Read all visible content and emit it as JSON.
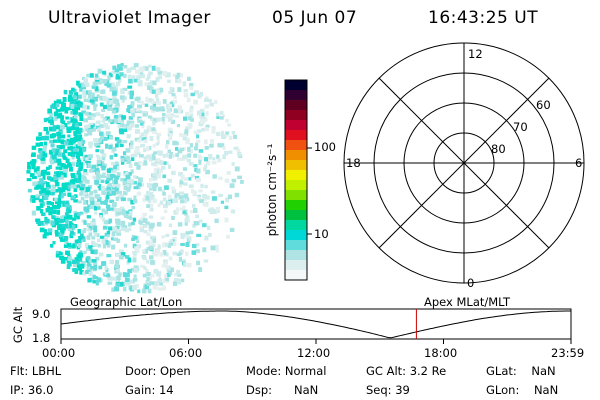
{
  "header": {
    "title": "Ultraviolet Imager",
    "date": "05 Jun 07",
    "time": "16:43:25 UT"
  },
  "colorbar": {
    "unit_label": "photon cm⁻²s⁻¹",
    "ticks": [
      "100",
      "10"
    ]
  },
  "polar_plot": {
    "hour_labels": {
      "top": "12",
      "left": "18",
      "right": "6",
      "bottom": "0"
    },
    "lat_labels": [
      "60",
      "70",
      "80"
    ]
  },
  "altitude_plot": {
    "left_label": "Geographic Lat/Lon",
    "right_label": "Apex MLat/MLT",
    "axis_label": "GC Alt",
    "y_ticks": [
      "9.0",
      "1.8"
    ],
    "x_ticks": [
      "00:00",
      "06:00",
      "12:00",
      "18:00",
      "23:59"
    ],
    "marker_time": "16:43:25"
  },
  "info_rows": [
    [
      {
        "label": "Flt:",
        "value": "LBHL"
      },
      {
        "label": "Door:",
        "value": "Open"
      },
      {
        "label": "Mode:",
        "value": "Normal"
      },
      {
        "label": "GC Alt:",
        "value": "3.2 Re"
      },
      {
        "label": "GLat:",
        "value": "NaN"
      }
    ],
    [
      {
        "label": "IP:",
        "value": "36.0"
      },
      {
        "label": "Gain:",
        "value": "14"
      },
      {
        "label": "Dsp:",
        "value": "NaN"
      },
      {
        "label": "Seq:",
        "value": "39"
      },
      {
        "label": "GLon:",
        "value": "NaN"
      }
    ]
  ],
  "colors": {
    "scale": [
      "#000030",
      "#300030",
      "#600020",
      "#900020",
      "#c00030",
      "#e01020",
      "#f05010",
      "#f09000",
      "#f0c000",
      "#f0f000",
      "#c0f000",
      "#80e000",
      "#20d000",
      "#00c040",
      "#00d8a0",
      "#00d8d8",
      "#60dcdc",
      "#b0e4e4",
      "#ddeeee",
      "#f4f8f8"
    ],
    "marker": "#cc0000"
  }
}
